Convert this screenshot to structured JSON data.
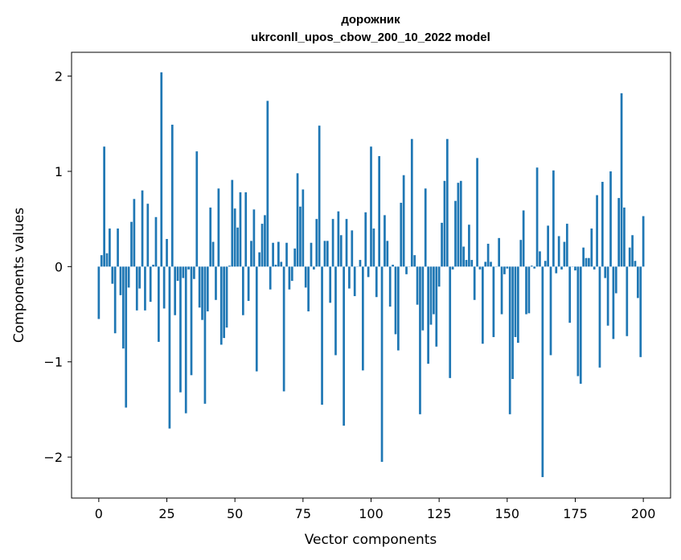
{
  "chart_data": {
    "type": "bar",
    "title_line1": "дорожник",
    "title_line2": "ukrconll_upos_cbow_200_10_2022 model",
    "xlabel": "Vector components",
    "ylabel": "Components values",
    "xlim": [
      -10,
      210
    ],
    "ylim": [
      -2.43,
      2.25
    ],
    "xticks": [
      0,
      25,
      50,
      75,
      100,
      125,
      150,
      175,
      200
    ],
    "xtick_labels": [
      "0",
      "25",
      "50",
      "75",
      "100",
      "125",
      "150",
      "175",
      "200"
    ],
    "yticks": [
      -2,
      -1,
      0,
      1,
      2
    ],
    "ytick_labels": [
      "−2",
      "−1",
      "0",
      "1",
      "2"
    ],
    "bar_color": "#1f77b4",
    "grid": false,
    "values": [
      -0.55,
      0.12,
      1.26,
      0.14,
      0.4,
      -0.18,
      -0.7,
      0.4,
      -0.3,
      -0.86,
      -1.48,
      -0.22,
      0.47,
      0.71,
      -0.46,
      -0.23,
      0.8,
      -0.46,
      0.66,
      -0.37,
      0.02,
      0.52,
      -0.79,
      2.04,
      -0.44,
      0.29,
      -1.7,
      1.49,
      -0.51,
      -0.15,
      -1.32,
      -0.12,
      -1.54,
      -0.03,
      -1.14,
      -0.13,
      1.21,
      -0.43,
      -0.56,
      -1.44,
      -0.47,
      0.62,
      0.26,
      -0.35,
      0.82,
      -0.82,
      -0.75,
      -0.64,
      0.01,
      0.91,
      0.61,
      0.41,
      0.78,
      -0.51,
      0.78,
      -0.36,
      0.27,
      0.6,
      -1.1,
      0.15,
      0.45,
      0.54,
      1.74,
      -0.24,
      0.25,
      0.02,
      0.26,
      0.05,
      -1.31,
      0.25,
      -0.24,
      -0.15,
      0.19,
      0.98,
      0.63,
      0.81,
      -0.22,
      -0.47,
      0.25,
      -0.03,
      0.5,
      1.48,
      -1.45,
      0.27,
      0.27,
      -0.38,
      0.5,
      -0.93,
      0.58,
      0.33,
      -1.67,
      0.5,
      -0.23,
      0.38,
      -0.31,
      0.0,
      0.07,
      -1.09,
      0.57,
      -0.11,
      1.26,
      0.4,
      -0.32,
      1.16,
      -2.05,
      0.54,
      0.27,
      -0.42,
      0.02,
      -0.71,
      -0.88,
      0.67,
      0.96,
      -0.08,
      0.0,
      1.34,
      0.12,
      -0.4,
      -1.55,
      -0.67,
      0.82,
      -1.02,
      -0.61,
      -0.5,
      -0.84,
      -0.21,
      0.46,
      0.9,
      1.34,
      -1.17,
      -0.03,
      0.69,
      0.88,
      0.9,
      0.21,
      0.07,
      0.44,
      0.07,
      -0.35,
      1.14,
      -0.03,
      -0.81,
      0.05,
      0.24,
      0.05,
      -0.74,
      0.0,
      0.3,
      -0.5,
      -0.08,
      -0.02,
      -1.55,
      -1.18,
      -0.74,
      -0.8,
      0.28,
      0.59,
      -0.5,
      -0.49,
      0.01,
      -0.02,
      1.04,
      0.16,
      -2.21,
      0.06,
      0.43,
      -0.93,
      1.01,
      -0.07,
      0.32,
      -0.03,
      0.26,
      0.45,
      -0.59,
      0.0,
      -0.04,
      -1.15,
      -1.23,
      0.2,
      0.09,
      0.09,
      0.4,
      -0.03,
      0.75,
      -1.06,
      0.89,
      -0.12,
      -0.62,
      1.0,
      -0.76,
      -0.28,
      0.72,
      1.82,
      0.62,
      -0.73,
      0.2,
      0.33,
      0.06,
      -0.33,
      -0.95,
      0.53
    ]
  }
}
